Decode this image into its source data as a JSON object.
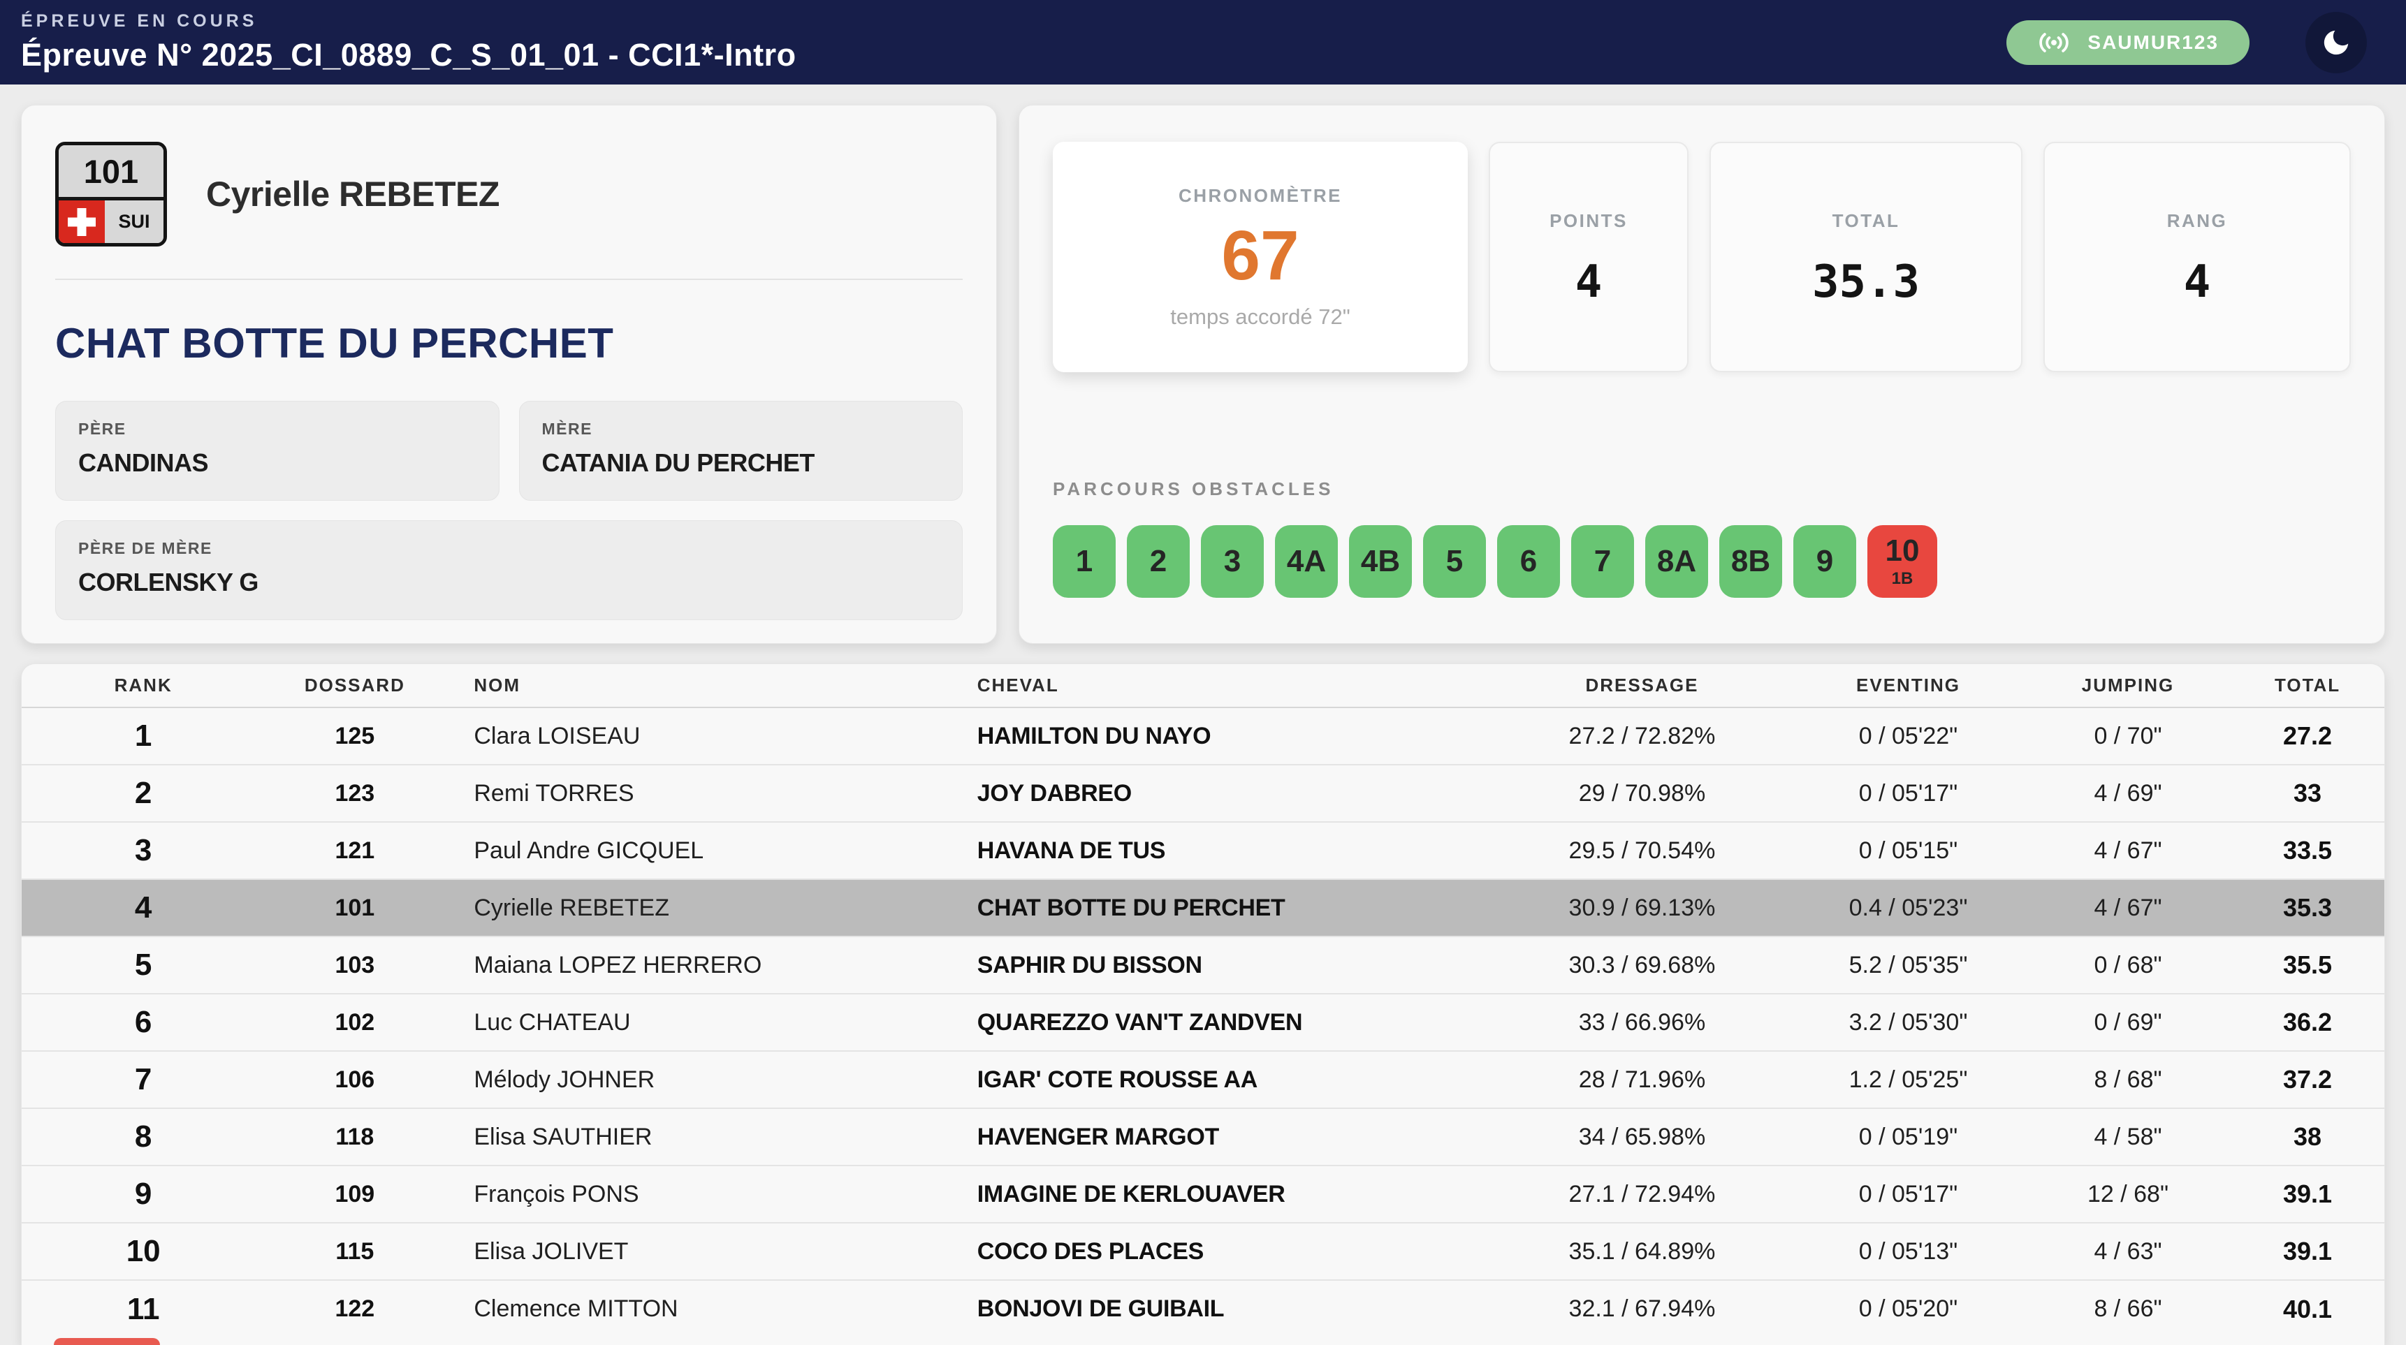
{
  "colors": {
    "header_bg": "#171e4a",
    "accent_orange": "#e0772f",
    "live_badge": "#8fc893",
    "highlight_row": "#bbbbbb",
    "obstacle_clear": "#68c573",
    "obstacle_fault": "#e8473f"
  },
  "header": {
    "kicker": "ÉPREUVE EN COURS",
    "title": "Épreuve N° 2025_CI_0889_C_S_01_01 - CCI1*-Intro",
    "live_badge": "SAUMUR123",
    "badge_icon": "broadcast-icon",
    "theme_toggle_icon": "moon-icon"
  },
  "rider": {
    "bib": "101",
    "country": "SUI",
    "name": "Cyrielle REBETEZ",
    "horse": "CHAT BOTTE DU PERCHET",
    "pedigree": {
      "sire_label": "PÈRE",
      "sire": "CANDINAS",
      "dam_label": "MÈRE",
      "dam": "CATANIA DU PERCHET",
      "damsire_label": "PÈRE DE MÈRE",
      "damsire": "CORLENSKY G"
    }
  },
  "scoreboard": {
    "chrono": {
      "label": "CHRONOMÈTRE",
      "value": "67",
      "note": "temps accordé 72\""
    },
    "stats": [
      {
        "label": "POINTS",
        "value": "4"
      },
      {
        "label": "TOTAL",
        "value": "35.3"
      },
      {
        "label": "RANG",
        "value": "4"
      }
    ]
  },
  "parcours": {
    "label": "PARCOURS OBSTACLES",
    "obstacles": [
      {
        "label": "1",
        "status": "clear"
      },
      {
        "label": "2",
        "status": "clear"
      },
      {
        "label": "3",
        "status": "clear"
      },
      {
        "label": "4A",
        "status": "clear"
      },
      {
        "label": "4B",
        "status": "clear"
      },
      {
        "label": "5",
        "status": "clear"
      },
      {
        "label": "6",
        "status": "clear"
      },
      {
        "label": "7",
        "status": "clear"
      },
      {
        "label": "8A",
        "status": "clear"
      },
      {
        "label": "8B",
        "status": "clear"
      },
      {
        "label": "9",
        "status": "clear"
      },
      {
        "label": "10",
        "sub": "1B",
        "status": "fault"
      }
    ]
  },
  "table": {
    "columns": [
      {
        "key": "rank",
        "label": "RANK"
      },
      {
        "key": "dossard",
        "label": "DOSSARD"
      },
      {
        "key": "nom",
        "label": "NOM"
      },
      {
        "key": "cheval",
        "label": "CHEVAL"
      },
      {
        "key": "dressage",
        "label": "DRESSAGE"
      },
      {
        "key": "eventing",
        "label": "EVENTING"
      },
      {
        "key": "jumping",
        "label": "JUMPING"
      },
      {
        "key": "total",
        "label": "TOTAL"
      }
    ],
    "rows": [
      {
        "rank": "1",
        "dossard": "125",
        "nom": "Clara LOISEAU",
        "cheval": "HAMILTON DU NAYO",
        "dressage": "27.2 / 72.82%",
        "eventing": "0 / 05'22\"",
        "jumping": "0 / 70\"",
        "total": "27.2"
      },
      {
        "rank": "2",
        "dossard": "123",
        "nom": "Remi TORRES",
        "cheval": "JOY DABREO",
        "dressage": "29 / 70.98%",
        "eventing": "0 / 05'17\"",
        "jumping": "4 / 69\"",
        "total": "33"
      },
      {
        "rank": "3",
        "dossard": "121",
        "nom": "Paul Andre GICQUEL",
        "cheval": "HAVANA DE TUS",
        "dressage": "29.5 / 70.54%",
        "eventing": "0 / 05'15\"",
        "jumping": "4 / 67\"",
        "total": "33.5"
      },
      {
        "rank": "4",
        "dossard": "101",
        "nom": "Cyrielle REBETEZ",
        "cheval": "CHAT BOTTE DU PERCHET",
        "dressage": "30.9 / 69.13%",
        "eventing": "0.4 / 05'23\"",
        "jumping": "4 / 67\"",
        "total": "35.3",
        "highlighted": true
      },
      {
        "rank": "5",
        "dossard": "103",
        "nom": "Maiana LOPEZ HERRERO",
        "cheval": "SAPHIR DU BISSON",
        "dressage": "30.3 / 69.68%",
        "eventing": "5.2 / 05'35\"",
        "jumping": "0 / 68\"",
        "total": "35.5"
      },
      {
        "rank": "6",
        "dossard": "102",
        "nom": "Luc CHATEAU",
        "cheval": "QUAREZZO VAN'T ZANDVEN",
        "dressage": "33 / 66.96%",
        "eventing": "3.2 / 05'30\"",
        "jumping": "0 / 69\"",
        "total": "36.2"
      },
      {
        "rank": "7",
        "dossard": "106",
        "nom": "Mélody JOHNER",
        "cheval": "IGAR' COTE ROUSSE AA",
        "dressage": "28 / 71.96%",
        "eventing": "1.2 / 05'25\"",
        "jumping": "8 / 68\"",
        "total": "37.2"
      },
      {
        "rank": "8",
        "dossard": "118",
        "nom": "Elisa SAUTHIER",
        "cheval": "HAVENGER MARGOT",
        "dressage": "34 / 65.98%",
        "eventing": "0 / 05'19\"",
        "jumping": "4 / 58\"",
        "total": "38"
      },
      {
        "rank": "9",
        "dossard": "109",
        "nom": "François PONS",
        "cheval": "IMAGINE DE KERLOUAVER",
        "dressage": "27.1 / 72.94%",
        "eventing": "0 / 05'17\"",
        "jumping": "12 / 68\"",
        "total": "39.1"
      },
      {
        "rank": "10",
        "dossard": "115",
        "nom": "Elisa JOLIVET",
        "cheval": "COCO DES PLACES",
        "dressage": "35.1 / 64.89%",
        "eventing": "0 / 05'13\"",
        "jumping": "4 / 63\"",
        "total": "39.1"
      },
      {
        "rank": "11",
        "dossard": "122",
        "nom": "Clemence MITTON",
        "cheval": "BONJOVI DE GUIBAIL",
        "dressage": "32.1 / 67.94%",
        "eventing": "0 / 05'20\"",
        "jumping": "8 / 66\"",
        "total": "40.1"
      }
    ]
  }
}
